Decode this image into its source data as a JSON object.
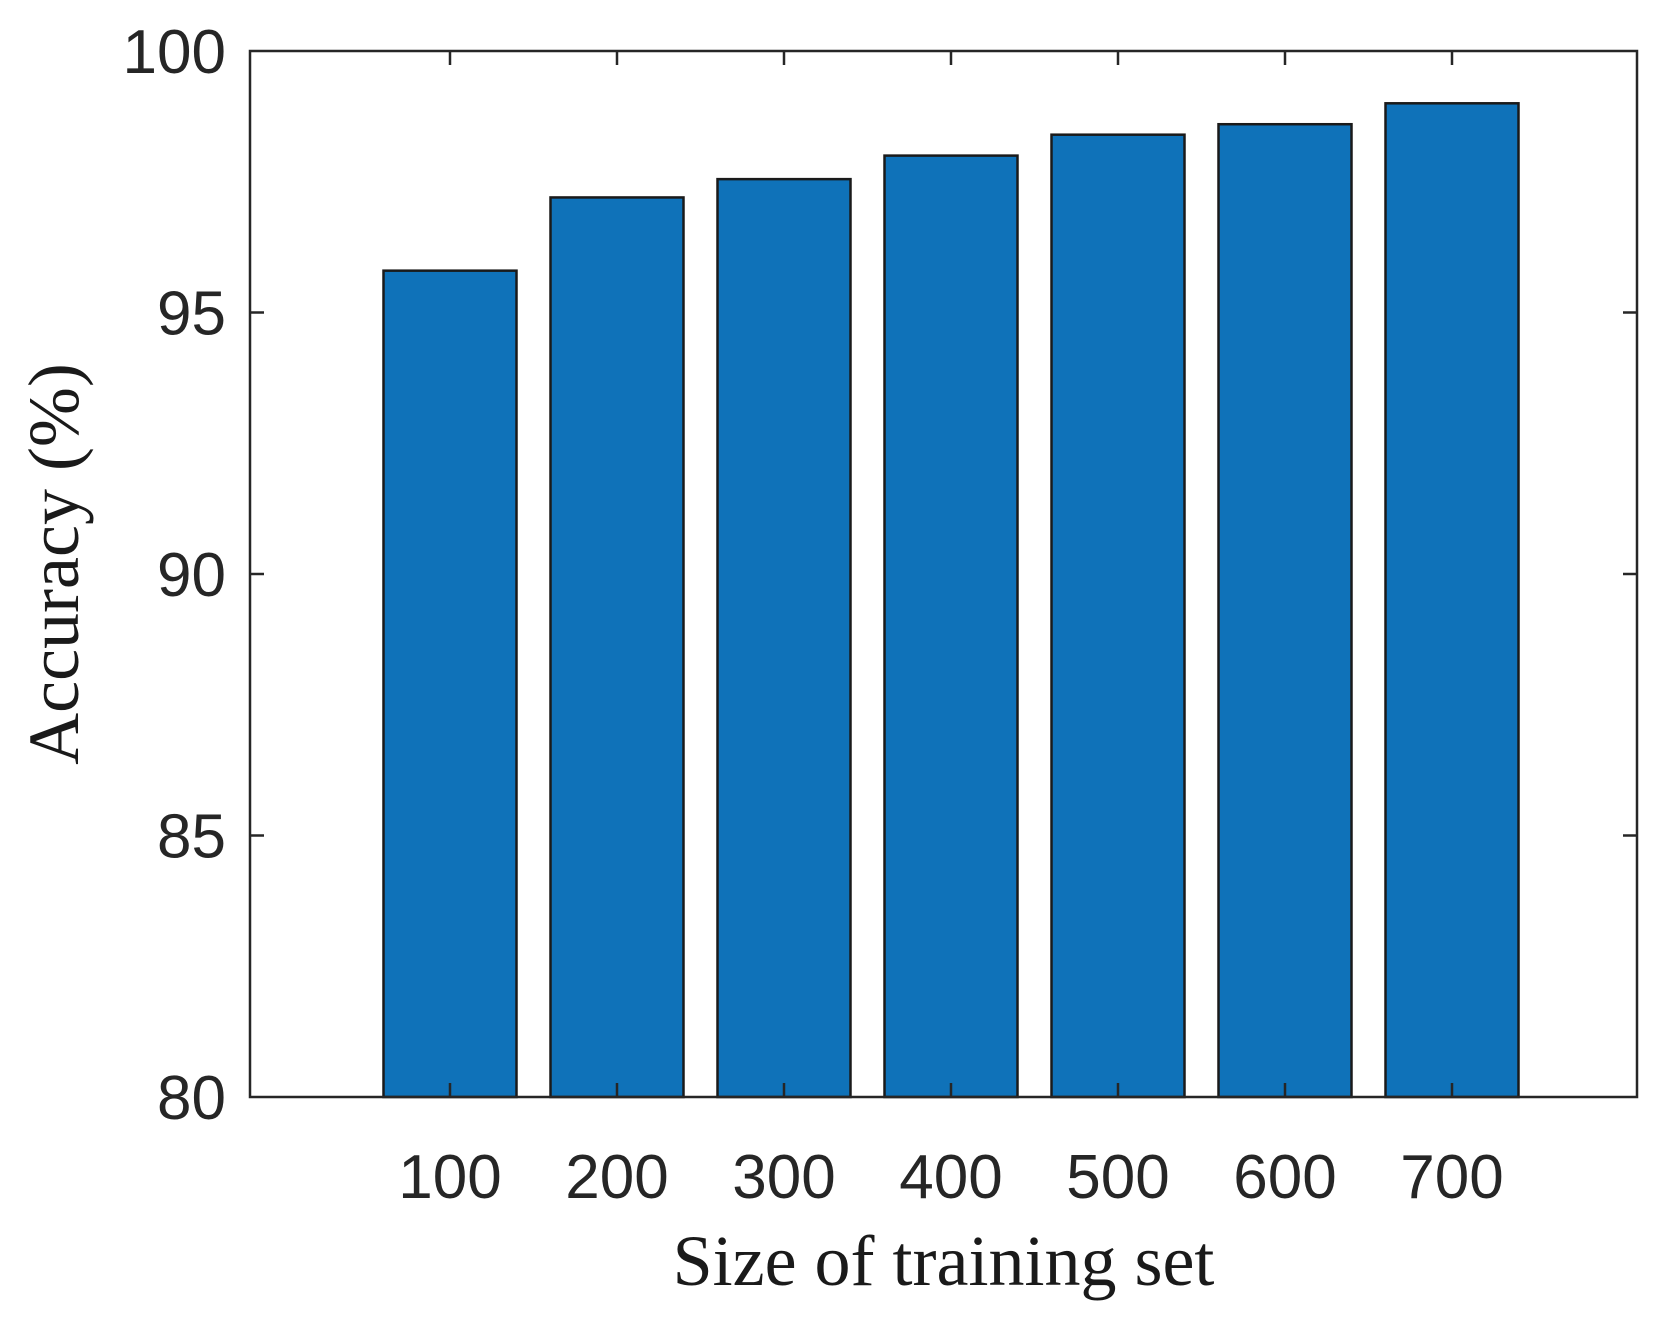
{
  "chart_data": {
    "type": "bar",
    "title": "",
    "xlabel": "Size of training set",
    "ylabel": "Accuracy (%)",
    "categories": [
      "100",
      "200",
      "300",
      "400",
      "500",
      "600",
      "700"
    ],
    "values": [
      95.8,
      97.2,
      97.55,
      98.0,
      98.4,
      98.6,
      99.0
    ],
    "ylim": [
      80,
      100
    ],
    "yticks": [
      80,
      85,
      90,
      95,
      100
    ],
    "ytick_labels": [
      "80",
      "85",
      "90",
      "95",
      "100"
    ],
    "grid": false,
    "bar_color": "#0f72b9",
    "edge_color": "#1a1a1a"
  }
}
